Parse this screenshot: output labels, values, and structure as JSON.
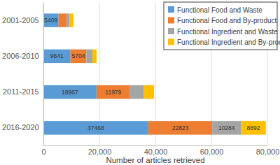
{
  "chart_data": {
    "type": "bar",
    "orientation": "horizontal",
    "stacked": true,
    "grid": true,
    "legend": "upper right",
    "data_labels": true,
    "x_label": "Number of articles retrieved",
    "categories": [
      "2001-2005",
      "2006-2010",
      "2011-2015",
      "2016-2020"
    ],
    "xlim": [
      0,
      80000
    ],
    "xticks": [
      0,
      {
        "value": 20000,
        "label": "20,000"
      },
      {
        "value": 40000,
        "label": "40,000"
      },
      {
        "value": 60000,
        "label": "60,000"
      },
      {
        "value": 80000,
        "label": "80,000"
      }
    ],
    "series": [
      {
        "name": "Functional Food and Waste",
        "color": "#5b9bd5",
        "values": [
          5409,
          9641,
          18967,
          37468
        ],
        "value_labels": [
          "5409",
          "9641",
          "18967",
          "37468"
        ]
      },
      {
        "name": "Functional Food and By-product",
        "color": "#ed7d31",
        "values": [
          2800,
          5704,
          11979,
          22823
        ],
        "value_labels": [
          null,
          "5704",
          "11979",
          "22823"
        ]
      },
      {
        "name": "Functional Ingredient and Waste",
        "color": "#a5a5a5",
        "values": [
          1100,
          2150,
          4800,
          10284
        ],
        "value_labels": [
          null,
          null,
          null,
          "10284"
        ]
      },
      {
        "name": "Functional Ingredient and By-product",
        "color": "#ffc000",
        "values": [
          1400,
          1500,
          3750,
          8892
        ],
        "value_labels": [
          null,
          null,
          null,
          "8892"
        ]
      }
    ]
  }
}
